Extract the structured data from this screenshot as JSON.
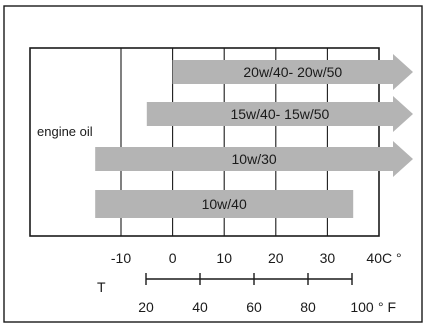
{
  "row_label": "engine oil",
  "bars": [
    {
      "label": "20w/40- 20w/50",
      "from_c": 0,
      "to_c": 40,
      "arrow": true
    },
    {
      "label": "15w/40- 15w/50",
      "from_c": -5,
      "to_c": 40,
      "arrow": true
    },
    {
      "label": "10w/30",
      "from_c": -15,
      "to_c": 40,
      "arrow": true
    },
    {
      "label": "10w/40",
      "from_c": -15,
      "to_c": 35,
      "arrow": false
    }
  ],
  "celsius_ticks": [
    "-10",
    "0",
    "10",
    "20",
    "30",
    "40"
  ],
  "celsius_unit": "C °",
  "temp_label": "T",
  "fahrenheit_ticks": [
    "20",
    "40",
    "60",
    "80",
    "100"
  ],
  "fahrenheit_unit": "° F",
  "colors": {
    "bar": "#b4b4b4",
    "line": "#1a1a1a",
    "background": "#ffffff"
  }
}
